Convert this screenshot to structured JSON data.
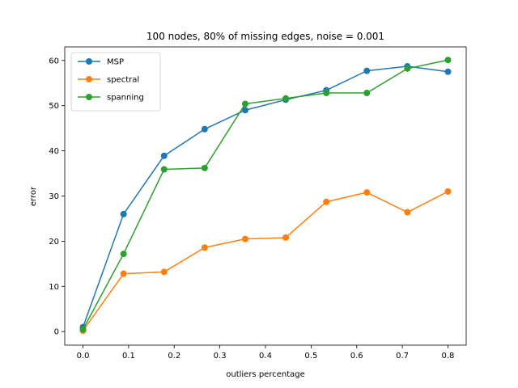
{
  "chart_data": {
    "type": "line",
    "title": "100 nodes, 80% of missing edges, noise = 0.001",
    "xlabel": "outliers percentage",
    "ylabel": "error",
    "xlim": [
      -0.04,
      0.84
    ],
    "ylim": [
      -3,
      63
    ],
    "xticks": [
      0.0,
      0.1,
      0.2,
      0.3,
      0.4,
      0.5,
      0.6,
      0.7,
      0.8
    ],
    "xtick_labels": [
      "0.0",
      "0.1",
      "0.2",
      "0.3",
      "0.4",
      "0.5",
      "0.6",
      "0.7",
      "0.8"
    ],
    "yticks": [
      0,
      10,
      20,
      30,
      40,
      50,
      60
    ],
    "ytick_labels": [
      "0",
      "10",
      "20",
      "30",
      "40",
      "50",
      "60"
    ],
    "grid": false,
    "legend_position": "upper left",
    "x": [
      0.0,
      0.0889,
      0.1778,
      0.2667,
      0.3556,
      0.4444,
      0.5333,
      0.6222,
      0.7111,
      0.8
    ],
    "series": [
      {
        "name": "MSP",
        "color": "#1f77b4",
        "marker": "circle",
        "values": [
          1.0,
          26.0,
          38.9,
          44.8,
          49.0,
          51.3,
          53.4,
          57.7,
          58.7,
          57.5
        ]
      },
      {
        "name": "spectral",
        "color": "#ff7f0e",
        "marker": "circle",
        "values": [
          0.2,
          12.8,
          13.2,
          18.6,
          20.5,
          20.8,
          28.7,
          30.8,
          26.4,
          31.0
        ]
      },
      {
        "name": "spanning",
        "color": "#2ca02c",
        "marker": "circle",
        "values": [
          0.5,
          17.2,
          35.9,
          36.2,
          50.4,
          51.6,
          52.8,
          52.8,
          58.2,
          60.1
        ]
      }
    ]
  }
}
